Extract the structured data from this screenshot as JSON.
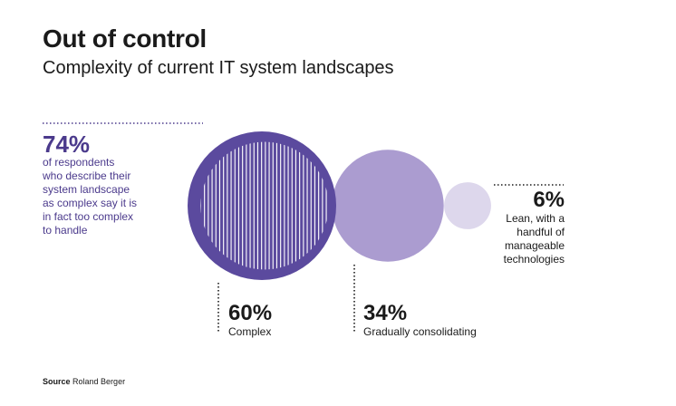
{
  "header": {
    "title": "Out of control",
    "subtitle": "Complexity of current IT system landscapes"
  },
  "chart_data": {
    "type": "bubble",
    "title": "Out of control",
    "subtitle": "Complexity of current IT system landscapes",
    "series": [
      {
        "name": "Complex",
        "value": 60,
        "label": "60%",
        "color": "#5b4a9e"
      },
      {
        "name": "Gradually consolidating",
        "value": 34,
        "label": "34%",
        "color": "#ab9cd0"
      },
      {
        "name": "Lean, with a handful of manageable technologies",
        "value": 6,
        "label": "6%",
        "color": "#ddd7ec"
      }
    ],
    "annotation": {
      "value": 74,
      "label": "74%",
      "text": "of respondents who describe their system landscape as complex say it is in fact too complex to handle",
      "lines": [
        "of respondents",
        "who describe their",
        "system landscape",
        "as complex say it is",
        "in fact too complex",
        "to handle"
      ],
      "subset_of": "Complex"
    }
  },
  "labels": {
    "complex": {
      "pct": "60%",
      "desc": "Complex"
    },
    "consolidating": {
      "pct": "34%",
      "desc": "Gradually consolidating"
    },
    "lean": {
      "pct": "6%",
      "lines": [
        "Lean, with a",
        "handful of",
        "manageable",
        "technologies"
      ]
    }
  },
  "source": {
    "prefix": "Source",
    "text": "Roland Berger"
  }
}
